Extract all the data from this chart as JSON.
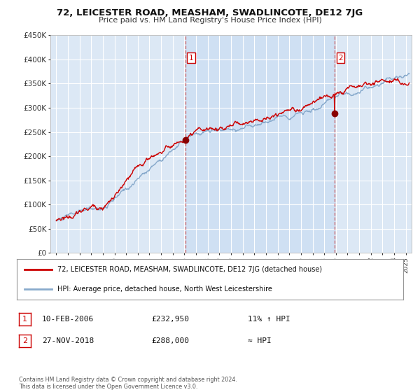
{
  "title": "72, LEICESTER ROAD, MEASHAM, SWADLINCOTE, DE12 7JG",
  "subtitle": "Price paid vs. HM Land Registry's House Price Index (HPI)",
  "ylabel_ticks": [
    "£0",
    "£50K",
    "£100K",
    "£150K",
    "£200K",
    "£250K",
    "£300K",
    "£350K",
    "£400K",
    "£450K"
  ],
  "ylim": [
    0,
    450000
  ],
  "xlim_start": 1994.5,
  "xlim_end": 2025.5,
  "background_color": "#ffffff",
  "plot_bg_color": "#dce8f5",
  "grid_color": "#ffffff",
  "shade_color": "#c0d8f0",
  "red_line_color": "#cc0000",
  "blue_line_color": "#88aacc",
  "marker1_x": 2006.1,
  "marker1_y": 232950,
  "marker2_x": 2018.9,
  "marker2_y": 288000,
  "legend_label_red": "72, LEICESTER ROAD, MEASHAM, SWADLINCOTE, DE12 7JG (detached house)",
  "legend_label_blue": "HPI: Average price, detached house, North West Leicestershire",
  "annotation1_date": "10-FEB-2006",
  "annotation1_price": "£232,950",
  "annotation1_hpi": "11% ↑ HPI",
  "annotation2_date": "27-NOV-2018",
  "annotation2_price": "£288,000",
  "annotation2_hpi": "≈ HPI",
  "footer": "Contains HM Land Registry data © Crown copyright and database right 2024.\nThis data is licensed under the Open Government Licence v3.0."
}
